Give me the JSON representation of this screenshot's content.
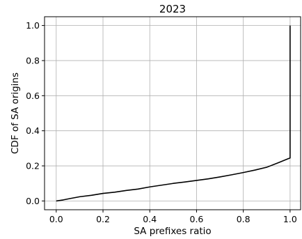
{
  "chart_data": {
    "type": "line",
    "title": "2023",
    "xlabel": "SA prefixes ratio",
    "ylabel": "CDF of SA origins",
    "xlim": [
      -0.05,
      1.045
    ],
    "ylim": [
      -0.05,
      1.05
    ],
    "xticks": [
      0.0,
      0.2,
      0.4,
      0.6,
      0.8,
      1.0
    ],
    "yticks": [
      0.0,
      0.2,
      0.4,
      0.6,
      0.8,
      1.0
    ],
    "tick_labels_x": [
      "0.0",
      "0.2",
      "0.4",
      "0.6",
      "0.8",
      "1.0"
    ],
    "tick_labels_y": [
      "0.0",
      "0.2",
      "0.4",
      "0.6",
      "0.8",
      "1.0"
    ],
    "grid": true,
    "color": "#000000",
    "series": [
      {
        "x": [
          0.0,
          0.03,
          0.06,
          0.1,
          0.15,
          0.2,
          0.25,
          0.3,
          0.35,
          0.4,
          0.45,
          0.5,
          0.55,
          0.6,
          0.65,
          0.7,
          0.75,
          0.8,
          0.85,
          0.9,
          0.95,
          0.99,
          1.0,
          1.0
        ],
        "y": [
          0.0,
          0.006,
          0.014,
          0.024,
          0.032,
          0.043,
          0.05,
          0.06,
          0.068,
          0.08,
          0.09,
          0.1,
          0.108,
          0.117,
          0.126,
          0.137,
          0.149,
          0.162,
          0.176,
          0.192,
          0.218,
          0.24,
          0.245,
          1.0
        ]
      }
    ]
  }
}
